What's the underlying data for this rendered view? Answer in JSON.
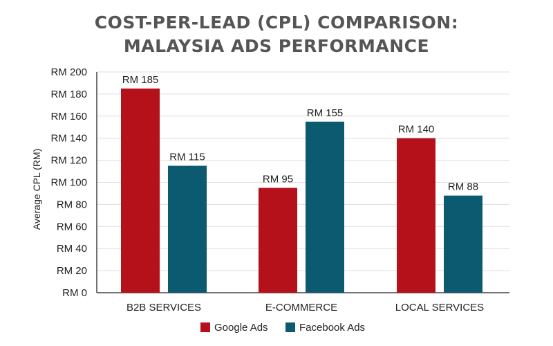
{
  "title_line1": "COST-PER-LEAD (CPL) COMPARISON:",
  "title_line2": "MALAYSIA ADS PERFORMANCE",
  "colors": {
    "google": "#b5111b",
    "facebook": "#0c5a70",
    "grid": "#dddddd",
    "axis": "#444444"
  },
  "chart_data": {
    "type": "bar",
    "title": "COST-PER-LEAD (CPL) COMPARISON: MALAYSIA ADS PERFORMANCE",
    "xlabel": "",
    "ylabel": "Average CPL (RM)",
    "ylim": [
      0,
      200
    ],
    "y_ticks": [
      0,
      20,
      40,
      60,
      80,
      100,
      120,
      140,
      160,
      180,
      200
    ],
    "y_tick_prefix": "RM ",
    "grid": true,
    "legend_position": "bottom",
    "categories": [
      "B2B SERVICES",
      "E-COMMERCE",
      "LOCAL SERVICES"
    ],
    "series": [
      {
        "name": "Google Ads",
        "values": [
          185,
          95,
          140
        ],
        "labels": [
          "RM 185",
          "RM 95",
          "RM 140"
        ]
      },
      {
        "name": "Facebook Ads",
        "values": [
          115,
          155,
          88
        ],
        "labels": [
          "RM 115",
          "RM 155",
          "RM 88"
        ]
      }
    ]
  }
}
